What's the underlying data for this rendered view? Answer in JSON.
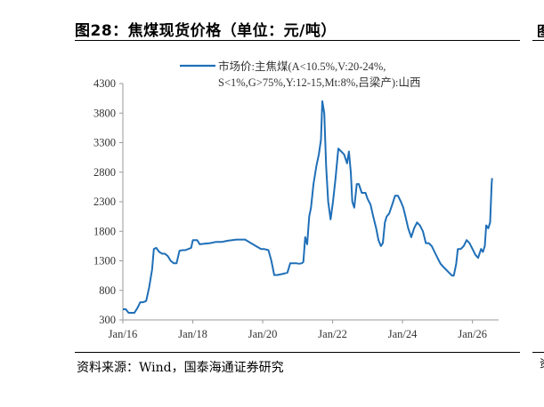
{
  "header": {
    "title": "图28：焦煤现货价格（单位：元/吨）"
  },
  "footer": {
    "source": "资料来源：Wind，国泰海通证券研究"
  },
  "colors": {
    "series": "#1f6fb8",
    "axis": "#999999",
    "text": "#333333"
  },
  "chart_data": {
    "type": "line",
    "title": "",
    "xlabel": "",
    "ylabel": "",
    "x_ticks": [
      "Jan/16",
      "Jan/18",
      "Jan/20",
      "Jan/22",
      "Jan/24",
      "Jan/26"
    ],
    "y_ticks": [
      300,
      800,
      1300,
      1800,
      2300,
      2800,
      3300,
      3800,
      4300
    ],
    "ylim": [
      300,
      4300
    ],
    "xlim": [
      "2016-01-01",
      "2026-10-01"
    ],
    "grid": false,
    "legend_position": "top-right",
    "series": [
      {
        "name": "市场价:主焦煤(A<10.5%,V:20-24%,S<1%,G>75%,Y:12-15,Mt:8%,吕梁产):山西",
        "legend_lines": [
          "市场价:主焦煤(A<10.5%,V:20-24%,",
          "S<1%,G>75%,Y:12-15,Mt:8%,吕梁产):山西"
        ],
        "color": "#1f6fb8",
        "points": [
          [
            "2016-01-01",
            480
          ],
          [
            "2016-02-01",
            480
          ],
          [
            "2016-03-01",
            420
          ],
          [
            "2016-04-15",
            420
          ],
          [
            "2016-05-01",
            420
          ],
          [
            "2016-06-01",
            500
          ],
          [
            "2016-07-01",
            600
          ],
          [
            "2016-08-01",
            600
          ],
          [
            "2016-09-01",
            620
          ],
          [
            "2016-10-01",
            850
          ],
          [
            "2016-11-01",
            1150
          ],
          [
            "2016-11-20",
            1500
          ],
          [
            "2016-12-15",
            1520
          ],
          [
            "2017-01-15",
            1450
          ],
          [
            "2017-02-15",
            1420
          ],
          [
            "2017-03-15",
            1420
          ],
          [
            "2017-04-15",
            1380
          ],
          [
            "2017-05-15",
            1300
          ],
          [
            "2017-06-15",
            1260
          ],
          [
            "2017-07-15",
            1260
          ],
          [
            "2017-08-15",
            1470
          ],
          [
            "2017-09-15",
            1480
          ],
          [
            "2017-10-15",
            1480
          ],
          [
            "2017-11-15",
            1500
          ],
          [
            "2017-12-15",
            1520
          ],
          [
            "2018-01-01",
            1650
          ],
          [
            "2018-02-15",
            1650
          ],
          [
            "2018-03-15",
            1580
          ],
          [
            "2018-05-01",
            1590
          ],
          [
            "2018-07-01",
            1600
          ],
          [
            "2018-09-01",
            1620
          ],
          [
            "2018-11-01",
            1620
          ],
          [
            "2019-01-01",
            1640
          ],
          [
            "2019-04-01",
            1660
          ],
          [
            "2019-07-01",
            1660
          ],
          [
            "2019-09-01",
            1600
          ],
          [
            "2019-11-01",
            1540
          ],
          [
            "2019-12-15",
            1500
          ],
          [
            "2020-01-15",
            1500
          ],
          [
            "2020-03-01",
            1480
          ],
          [
            "2020-04-01",
            1300
          ],
          [
            "2020-05-01",
            1060
          ],
          [
            "2020-06-01",
            1060
          ],
          [
            "2020-08-01",
            1080
          ],
          [
            "2020-09-15",
            1100
          ],
          [
            "2020-10-15",
            1260
          ],
          [
            "2020-11-15",
            1260
          ],
          [
            "2020-12-15",
            1260
          ],
          [
            "2021-01-15",
            1250
          ],
          [
            "2021-02-15",
            1260
          ],
          [
            "2021-03-01",
            1280
          ],
          [
            "2021-03-20",
            1700
          ],
          [
            "2021-04-10",
            1580
          ],
          [
            "2021-05-01",
            2050
          ],
          [
            "2021-05-20",
            2200
          ],
          [
            "2021-06-15",
            2600
          ],
          [
            "2021-07-15",
            2900
          ],
          [
            "2021-08-10",
            3100
          ],
          [
            "2021-09-01",
            3350
          ],
          [
            "2021-09-15",
            4000
          ],
          [
            "2021-10-05",
            3800
          ],
          [
            "2021-10-25",
            2900
          ],
          [
            "2021-11-15",
            2300
          ],
          [
            "2021-12-10",
            2000
          ],
          [
            "2022-01-05",
            2300
          ],
          [
            "2022-02-01",
            2700
          ],
          [
            "2022-03-01",
            3200
          ],
          [
            "2022-04-01",
            3150
          ],
          [
            "2022-05-01",
            3100
          ],
          [
            "2022-06-01",
            2950
          ],
          [
            "2022-06-20",
            3150
          ],
          [
            "2022-07-10",
            2800
          ],
          [
            "2022-07-25",
            2300
          ],
          [
            "2022-08-15",
            2200
          ],
          [
            "2022-09-10",
            2600
          ],
          [
            "2022-10-01",
            2600
          ],
          [
            "2022-11-01",
            2450
          ],
          [
            "2022-12-10",
            2450
          ],
          [
            "2023-01-01",
            2350
          ],
          [
            "2023-02-01",
            2250
          ],
          [
            "2023-03-01",
            2050
          ],
          [
            "2023-04-01",
            1850
          ],
          [
            "2023-04-25",
            1650
          ],
          [
            "2023-05-20",
            1550
          ],
          [
            "2023-06-10",
            1600
          ],
          [
            "2023-07-01",
            1950
          ],
          [
            "2023-07-20",
            2050
          ],
          [
            "2023-08-15",
            2100
          ],
          [
            "2023-09-15",
            2250
          ],
          [
            "2023-10-15",
            2400
          ],
          [
            "2023-11-15",
            2400
          ],
          [
            "2023-12-15",
            2300
          ],
          [
            "2024-01-10",
            2200
          ],
          [
            "2024-02-01",
            2050
          ],
          [
            "2024-03-01",
            1850
          ],
          [
            "2024-04-01",
            1700
          ],
          [
            "2024-05-01",
            1850
          ],
          [
            "2024-06-01",
            1950
          ],
          [
            "2024-07-01",
            1900
          ],
          [
            "2024-08-01",
            1800
          ],
          [
            "2024-09-01",
            1600
          ],
          [
            "2024-10-01",
            1600
          ],
          [
            "2024-11-01",
            1550
          ],
          [
            "2024-12-01",
            1450
          ],
          [
            "2025-01-01",
            1350
          ],
          [
            "2025-02-01",
            1250
          ],
          [
            "2025-03-01",
            1200
          ],
          [
            "2025-04-01",
            1150
          ],
          [
            "2025-05-01",
            1100
          ],
          [
            "2025-06-01",
            1050
          ],
          [
            "2025-06-20",
            1050
          ],
          [
            "2025-07-15",
            1250
          ],
          [
            "2025-08-01",
            1500
          ],
          [
            "2025-09-01",
            1500
          ],
          [
            "2025-10-01",
            1550
          ],
          [
            "2025-11-01",
            1650
          ],
          [
            "2025-12-01",
            1600
          ],
          [
            "2026-01-01",
            1500
          ],
          [
            "2026-02-01",
            1400
          ],
          [
            "2026-03-01",
            1350
          ],
          [
            "2026-04-01",
            1500
          ],
          [
            "2026-04-20",
            1450
          ],
          [
            "2026-05-10",
            1550
          ],
          [
            "2026-05-25",
            1900
          ],
          [
            "2026-06-15",
            1850
          ],
          [
            "2026-07-05",
            1950
          ],
          [
            "2026-07-20",
            2600
          ],
          [
            "2026-07-25",
            2700
          ]
        ]
      }
    ]
  }
}
